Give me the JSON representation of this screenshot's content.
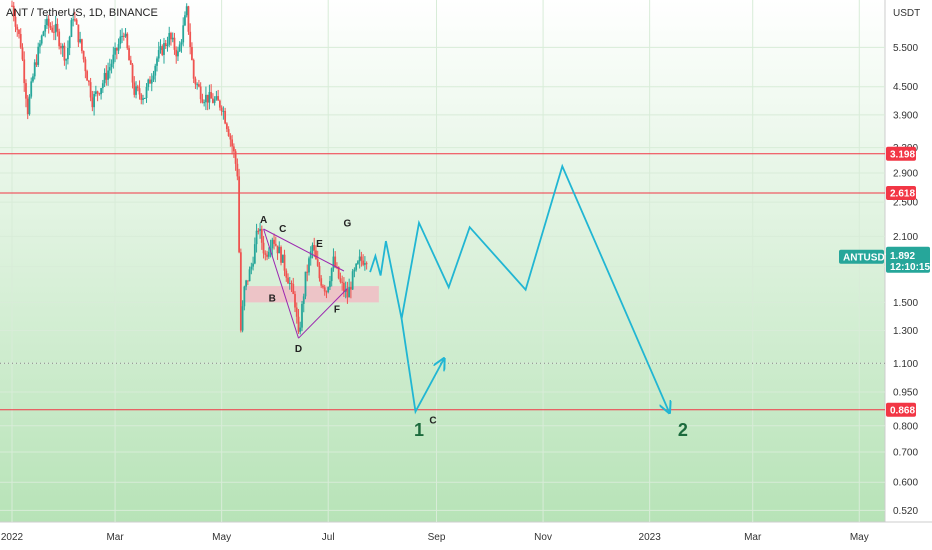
{
  "chart_data": {
    "type": "candlestick",
    "title": "ANT / TetherUS, 1D, BINANCE",
    "currency": "USDT",
    "y_scale": "log",
    "ylim": [
      0.49,
      7.0
    ],
    "x_range": [
      "2022-01-01",
      "2023-05-10"
    ],
    "x_ticks": [
      {
        "label": "2022",
        "date": "2022-01-01"
      },
      {
        "label": "Mar",
        "date": "2022-03-01"
      },
      {
        "label": "May",
        "date": "2022-05-01"
      },
      {
        "label": "Jul",
        "date": "2022-07-01"
      },
      {
        "label": "Sep",
        "date": "2022-09-01"
      },
      {
        "label": "Nov",
        "date": "2022-11-01"
      },
      {
        "label": "2023",
        "date": "2023-01-01"
      },
      {
        "label": "Mar",
        "date": "2023-03-01"
      },
      {
        "label": "May",
        "date": "2023-05-01"
      }
    ],
    "y_ticks": [
      "5.500",
      "4.500",
      "3.900",
      "3.300",
      "2.900",
      "2.500",
      "2.100",
      "1.800",
      "1.500",
      "1.300",
      "1.100",
      "0.950",
      "0.800",
      "0.700",
      "0.600",
      "0.520"
    ],
    "price_path": [
      [
        "2022-01-01",
        6.8
      ],
      [
        "2022-01-06",
        5.6
      ],
      [
        "2022-01-10",
        4.0
      ],
      [
        "2022-01-14",
        5.0
      ],
      [
        "2022-01-20",
        6.2
      ],
      [
        "2022-01-26",
        6.0
      ],
      [
        "2022-02-01",
        5.2
      ],
      [
        "2022-02-05",
        6.5
      ],
      [
        "2022-02-10",
        5.4
      ],
      [
        "2022-02-16",
        4.2
      ],
      [
        "2022-02-22",
        4.6
      ],
      [
        "2022-03-01",
        5.3
      ],
      [
        "2022-03-06",
        6.0
      ],
      [
        "2022-03-12",
        4.4
      ],
      [
        "2022-03-18",
        4.3
      ],
      [
        "2022-03-25",
        5.2
      ],
      [
        "2022-04-01",
        5.8
      ],
      [
        "2022-04-06",
        5.3
      ],
      [
        "2022-04-11",
        6.6
      ],
      [
        "2022-04-15",
        4.7
      ],
      [
        "2022-04-20",
        4.3
      ],
      [
        "2022-04-26",
        4.2
      ],
      [
        "2022-05-01",
        4.1
      ],
      [
        "2022-05-05",
        3.6
      ],
      [
        "2022-05-08",
        3.2
      ],
      [
        "2022-05-10",
        2.9
      ],
      [
        "2022-05-12",
        1.3
      ],
      [
        "2022-05-14",
        1.6
      ],
      [
        "2022-05-18",
        1.8
      ],
      [
        "2022-05-22",
        2.2
      ],
      [
        "2022-05-26",
        1.9
      ],
      [
        "2022-05-30",
        2.1
      ],
      [
        "2022-06-04",
        1.9
      ],
      [
        "2022-06-08",
        1.7
      ],
      [
        "2022-06-12",
        1.5
      ],
      [
        "2022-06-14",
        1.25
      ],
      [
        "2022-06-18",
        1.7
      ],
      [
        "2022-06-22",
        2.0
      ],
      [
        "2022-06-26",
        1.7
      ],
      [
        "2022-06-30",
        1.6
      ],
      [
        "2022-07-04",
        1.85
      ],
      [
        "2022-07-08",
        1.65
      ],
      [
        "2022-07-12",
        1.55
      ],
      [
        "2022-07-15",
        1.7
      ],
      [
        "2022-07-19",
        1.85
      ],
      [
        "2022-07-23",
        1.89
      ]
    ],
    "projection": [
      [
        "2022-07-25",
        1.75
      ],
      [
        "2022-07-28",
        1.9
      ],
      [
        "2022-07-31",
        1.72
      ],
      [
        "2022-08-03",
        2.05
      ],
      [
        "2022-08-12",
        1.38
      ],
      [
        "2022-08-20",
        0.86
      ],
      [
        "2022-09-05",
        1.12
      ]
    ],
    "projection_2": [
      [
        "2022-08-12",
        1.38
      ],
      [
        "2022-08-22",
        2.25
      ],
      [
        "2022-09-08",
        1.62
      ],
      [
        "2022-09-20",
        2.2
      ],
      [
        "2022-10-22",
        1.6
      ],
      [
        "2022-11-12",
        3.0
      ],
      [
        "2023-01-12",
        0.86
      ]
    ],
    "pattern_points": [
      {
        "label": "A",
        "date": "2022-05-25",
        "value": 2.18
      },
      {
        "label": "B",
        "date": "2022-05-30",
        "value": 1.62
      },
      {
        "label": "C",
        "date": "2022-06-05",
        "value": 2.08
      },
      {
        "label": "D",
        "date": "2022-06-14",
        "value": 1.25
      },
      {
        "label": "E",
        "date": "2022-06-26",
        "value": 1.93
      },
      {
        "label": "F",
        "date": "2022-07-06",
        "value": 1.53
      },
      {
        "label": "G",
        "date": "2022-07-12",
        "value": 2.14
      }
    ],
    "wave_labels": [
      {
        "label": "1",
        "date": "2022-08-22",
        "value": 0.8
      },
      {
        "label": "C",
        "date": "2022-08-30",
        "value": 0.81
      },
      {
        "label": "2",
        "date": "2023-01-20",
        "value": 0.8
      }
    ],
    "support_zone": [
      1.5,
      1.63
    ],
    "horizontal_levels": [
      {
        "value": 3.198,
        "label": "3.198",
        "color": "#f23645"
      },
      {
        "value": 2.618,
        "label": "2.618",
        "color": "#f23645"
      },
      {
        "value": 0.868,
        "label": "0.868",
        "color": "#f23645"
      }
    ],
    "dotted_level": 1.1,
    "current": {
      "symbol": "ANTUSDT",
      "price": "1.892",
      "countdown": "12:10:15",
      "color": "#26a69a"
    },
    "colors": {
      "up": "#26a69a",
      "down": "#ef5350",
      "projection": "#21b6d3",
      "pattern": "#9c27b0",
      "zone": "#f4b6c2",
      "bg_top": "#ffffff",
      "bg_bottom": "#b7e3b7"
    }
  }
}
